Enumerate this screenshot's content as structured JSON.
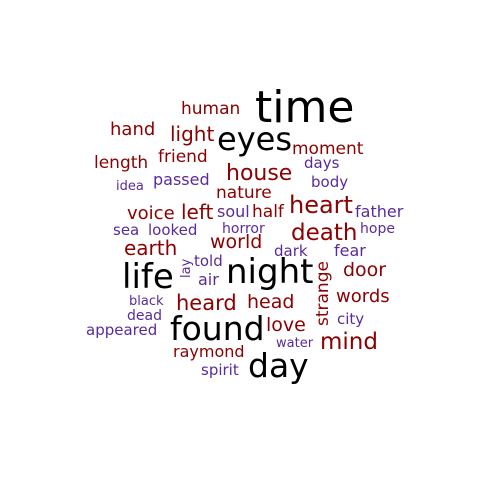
{
  "colors": {
    "black": "#000000",
    "red": "#8b0000",
    "purple": "#5b2a9a"
  },
  "words": [
    {
      "text": "time",
      "tier": "black",
      "size": "xl"
    },
    {
      "text": "eyes",
      "tier": "black",
      "size": "l"
    },
    {
      "text": "night",
      "tier": "black",
      "size": "l"
    },
    {
      "text": "life",
      "tier": "black",
      "size": "l"
    },
    {
      "text": "found",
      "tier": "black",
      "size": "l"
    },
    {
      "text": "day",
      "tier": "black",
      "size": "l"
    },
    {
      "text": "human",
      "tier": "red",
      "size": "s"
    },
    {
      "text": "hand",
      "tier": "red",
      "size": "s"
    },
    {
      "text": "light",
      "tier": "red",
      "size": "m"
    },
    {
      "text": "moment",
      "tier": "red",
      "size": "s"
    },
    {
      "text": "friend",
      "tier": "red",
      "size": "s"
    },
    {
      "text": "length",
      "tier": "red",
      "size": "s"
    },
    {
      "text": "house",
      "tier": "red",
      "size": "m"
    },
    {
      "text": "nature",
      "tier": "red",
      "size": "s"
    },
    {
      "text": "heart",
      "tier": "red",
      "size": "m"
    },
    {
      "text": "voice",
      "tier": "red",
      "size": "s"
    },
    {
      "text": "left",
      "tier": "red",
      "size": "m"
    },
    {
      "text": "half",
      "tier": "red",
      "size": "s"
    },
    {
      "text": "death",
      "tier": "red",
      "size": "m"
    },
    {
      "text": "earth",
      "tier": "red",
      "size": "m"
    },
    {
      "text": "world",
      "tier": "red",
      "size": "m"
    },
    {
      "text": "door",
      "tier": "red",
      "size": "m"
    },
    {
      "text": "heard",
      "tier": "red",
      "size": "m"
    },
    {
      "text": "head",
      "tier": "red",
      "size": "m"
    },
    {
      "text": "words",
      "tier": "red",
      "size": "m"
    },
    {
      "text": "love",
      "tier": "red",
      "size": "m"
    },
    {
      "text": "mind",
      "tier": "red",
      "size": "m"
    },
    {
      "text": "raymond",
      "tier": "red",
      "size": "s"
    },
    {
      "text": "strange",
      "tier": "red",
      "size": "s"
    },
    {
      "text": "days",
      "tier": "purple",
      "size": "xs"
    },
    {
      "text": "idea",
      "tier": "purple",
      "size": "xs"
    },
    {
      "text": "passed",
      "tier": "purple",
      "size": "s"
    },
    {
      "text": "body",
      "tier": "purple",
      "size": "s"
    },
    {
      "text": "soul",
      "tier": "purple",
      "size": "s"
    },
    {
      "text": "father",
      "tier": "purple",
      "size": "s"
    },
    {
      "text": "horror",
      "tier": "purple",
      "size": "xs"
    },
    {
      "text": "hope",
      "tier": "purple",
      "size": "xs"
    },
    {
      "text": "sea",
      "tier": "purple",
      "size": "s"
    },
    {
      "text": "looked",
      "tier": "purple",
      "size": "s"
    },
    {
      "text": "dark",
      "tier": "purple",
      "size": "s"
    },
    {
      "text": "fear",
      "tier": "purple",
      "size": "s"
    },
    {
      "text": "lay",
      "tier": "purple",
      "size": "xs"
    },
    {
      "text": "told",
      "tier": "purple",
      "size": "s"
    },
    {
      "text": "air",
      "tier": "purple",
      "size": "s"
    },
    {
      "text": "black",
      "tier": "purple",
      "size": "xs"
    },
    {
      "text": "dead",
      "tier": "purple",
      "size": "s"
    },
    {
      "text": "city",
      "tier": "purple",
      "size": "s"
    },
    {
      "text": "appeared",
      "tier": "purple",
      "size": "s"
    },
    {
      "text": "water",
      "tier": "purple",
      "size": "xs"
    },
    {
      "text": "spirit",
      "tier": "purple",
      "size": "s"
    }
  ]
}
